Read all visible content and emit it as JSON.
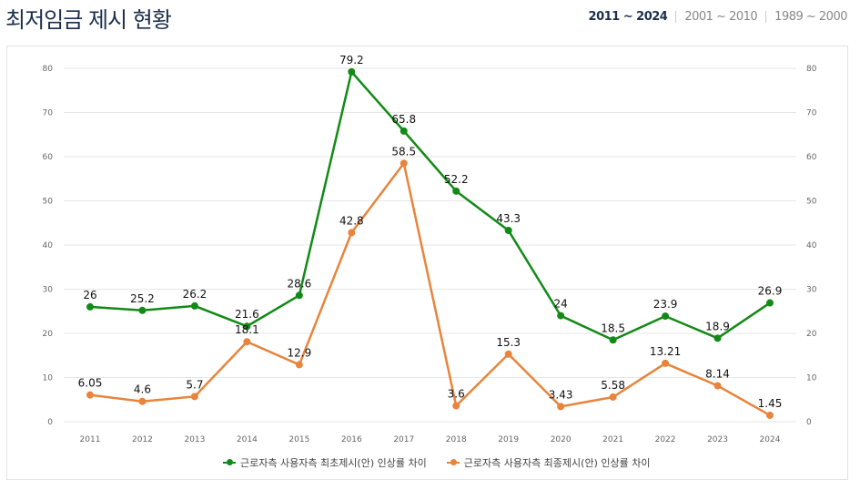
{
  "header": {
    "title": "최저임금 제시 현황",
    "ranges": [
      "2011 ~ 2024",
      "2001 ~ 2010",
      "1989 ~ 2000"
    ],
    "active_range": "2011 ~ 2024"
  },
  "chart_data": {
    "type": "line",
    "categories": [
      "2011",
      "2012",
      "2013",
      "2014",
      "2015",
      "2016",
      "2017",
      "2018",
      "2019",
      "2020",
      "2021",
      "2022",
      "2023",
      "2024"
    ],
    "ylim": [
      0,
      80
    ],
    "yticks": [
      0,
      10,
      20,
      30,
      40,
      50,
      60,
      70,
      80
    ],
    "grid": true,
    "dual_axis_labels": true,
    "legend_position": "bottom",
    "series": [
      {
        "name": "근로자측 사용자측 최초제시(안) 인상률 차이",
        "color": "#138a17",
        "values": [
          26,
          25.2,
          26.2,
          21.6,
          28.6,
          79.2,
          65.8,
          52.2,
          43.3,
          24,
          18.5,
          23.9,
          18.9,
          26.9
        ],
        "labels": [
          "26",
          "25.2",
          "26.2",
          "21.6",
          "28.6",
          "79.2",
          "65.8",
          "52.2",
          "43.3",
          "24",
          "18.5",
          "23.9",
          "18.9",
          "26.9"
        ]
      },
      {
        "name": "근로자측 사용자측 최종제시(안) 인상률 차이",
        "color": "#e8843b",
        "values": [
          6.05,
          4.6,
          5.7,
          18.1,
          12.9,
          42.8,
          58.5,
          3.6,
          15.3,
          3.43,
          5.58,
          13.21,
          8.14,
          1.45
        ],
        "labels": [
          "6.05",
          "4.6",
          "5.7",
          "18.1",
          "12.9",
          "42.8",
          "58.5",
          "3.6",
          "15.3",
          "3.43",
          "5.58",
          "13.21",
          "8.14",
          "1.45"
        ]
      }
    ]
  }
}
